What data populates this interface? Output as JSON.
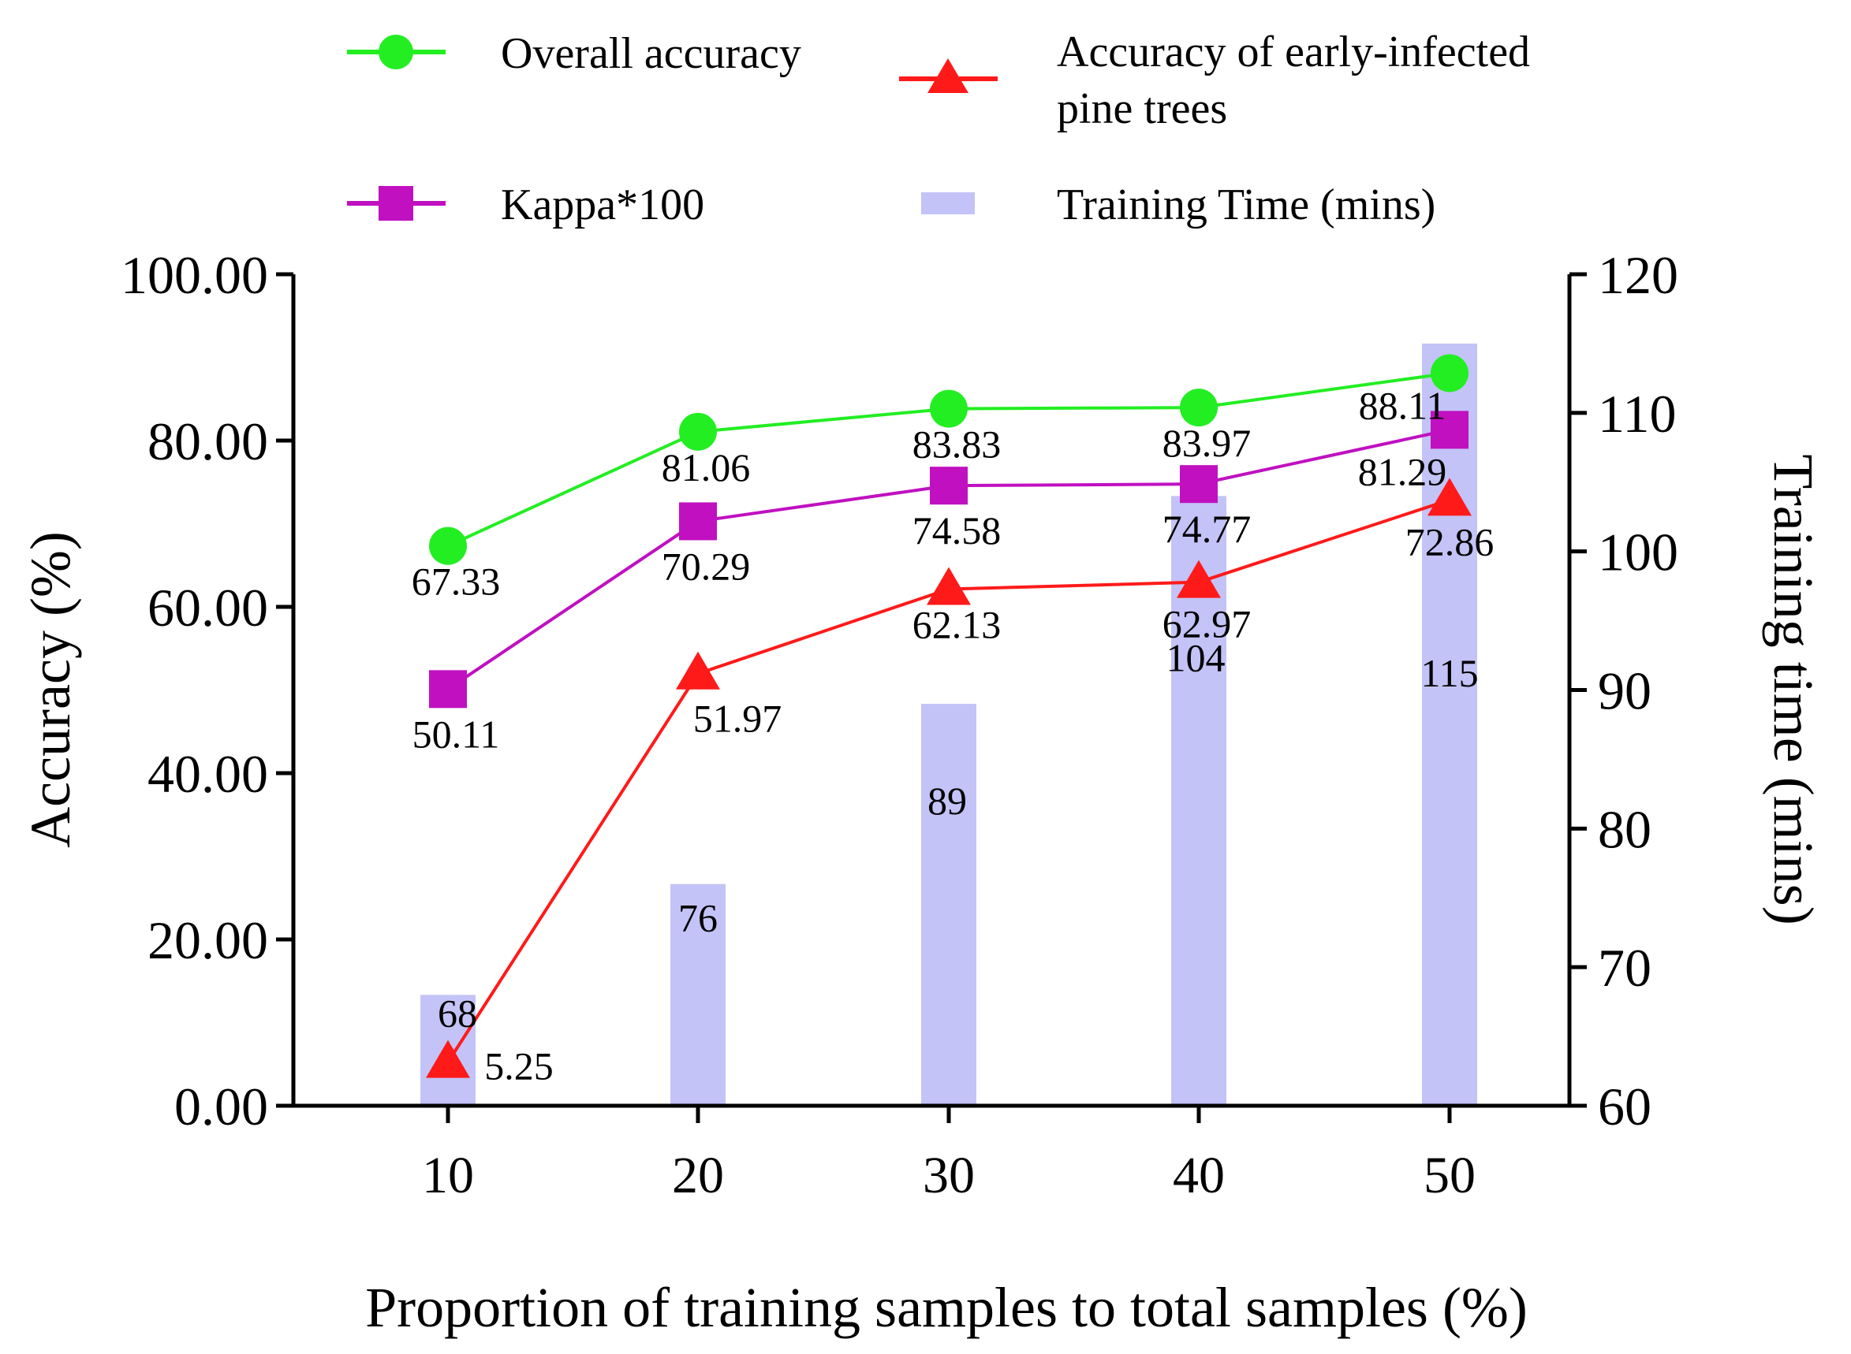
{
  "chart_data": {
    "type": "bar+line",
    "x": [
      10,
      20,
      30,
      40,
      50
    ],
    "x_tick_labels": [
      "10",
      "20",
      "30",
      "40",
      "50"
    ],
    "xlabel": "Proportion of training samples to total samples (%)",
    "ylabel_left": "Accuracy (%)",
    "ylabel_right": "Training time (mins)",
    "ylim_left": [
      0,
      100
    ],
    "ylim_right": [
      60,
      120
    ],
    "yticks_left": [
      "0.00",
      "20.00",
      "40.00",
      "60.00",
      "80.00",
      "100.00"
    ],
    "yticks_right": [
      "60",
      "70",
      "80",
      "90",
      "100",
      "110",
      "120"
    ],
    "legend_position": "top",
    "grid": false,
    "series": [
      {
        "name": "Overall accuracy",
        "axis": "left",
        "kind": "line",
        "marker": "circle",
        "color": "#22ee22",
        "values": [
          67.33,
          81.06,
          83.83,
          83.97,
          88.11
        ],
        "labels": [
          "67.33",
          "81.06",
          "83.83",
          "83.97",
          "88.11"
        ]
      },
      {
        "name": "Kappa*100",
        "axis": "left",
        "kind": "line",
        "marker": "square",
        "color": "#c010c0",
        "values": [
          50.11,
          70.29,
          74.58,
          74.77,
          81.29
        ],
        "labels": [
          "50.11",
          "70.29",
          "74.58",
          "74.77",
          "81.29"
        ]
      },
      {
        "name_lines": [
          "Accuracy of early-infected",
          "pine trees"
        ],
        "axis": "left",
        "kind": "line",
        "marker": "triangle",
        "color": "#ff1a1a",
        "values": [
          5.25,
          51.97,
          62.13,
          62.97,
          72.86
        ],
        "labels": [
          "5.25",
          "51.97",
          "62.13",
          "62.97",
          "72.86"
        ]
      },
      {
        "name": "Training Time (mins)",
        "axis": "right",
        "kind": "bar",
        "color": "#c3c3f7",
        "values": [
          68,
          76,
          89,
          104,
          115
        ],
        "labels": [
          "68",
          "76",
          "89",
          "104",
          "115"
        ]
      }
    ]
  }
}
